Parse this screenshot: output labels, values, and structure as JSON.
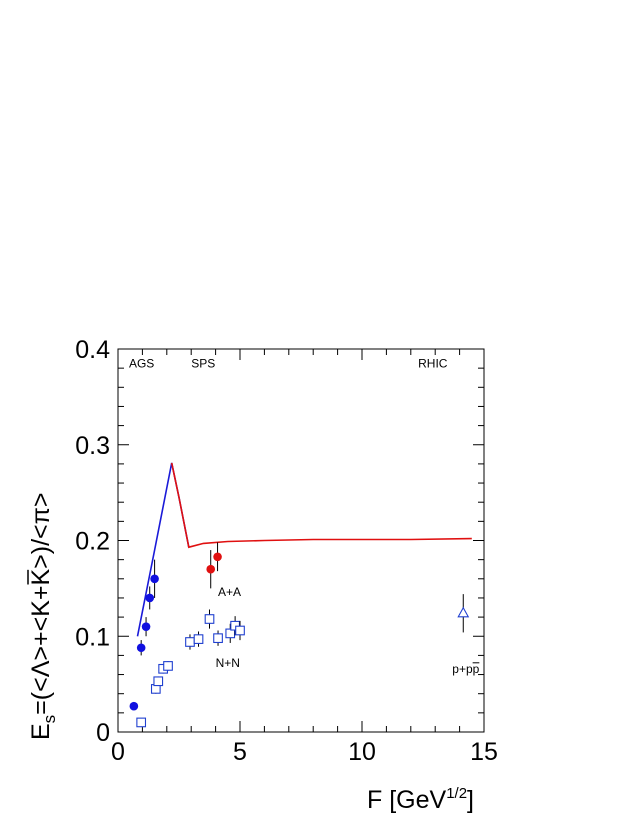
{
  "chart_data": {
    "type": "scatter",
    "xlabel": "F [GeV",
    "xlabel_superscript": "1/2",
    "xlabel_close": "]",
    "ylabel_parts": {
      "E": "E",
      "s": "s",
      "expr": "=(<Λ>+<K+",
      "Kbar": "K",
      "close": ">)/<π>"
    },
    "xlim": [
      0,
      15
    ],
    "ylim": [
      0,
      0.4
    ],
    "xticks": [
      {
        "value": 0,
        "label": "0"
      },
      {
        "value": 5,
        "label": "5"
      },
      {
        "value": 10,
        "label": "10"
      },
      {
        "value": 15,
        "label": "15"
      }
    ],
    "yticks": [
      {
        "value": 0,
        "label": "0"
      },
      {
        "value": 0.1,
        "label": "0.1"
      },
      {
        "value": 0.2,
        "label": "0.2"
      },
      {
        "value": 0.3,
        "label": "0.3"
      },
      {
        "value": 0.4,
        "label": "0.4"
      }
    ],
    "region_labels": [
      {
        "text": "AGS",
        "x": 0.45,
        "y": 0.385
      },
      {
        "text": "SPS",
        "x": 3.0,
        "y": 0.385
      },
      {
        "text": "RHIC",
        "x": 12.3,
        "y": 0.385
      }
    ],
    "annotations": [
      {
        "text": "A+A",
        "x": 4.1,
        "y": 0.146
      },
      {
        "text": "N+N",
        "x": 4.0,
        "y": 0.072
      },
      {
        "text": "p+p",
        "text_bar": "p",
        "x": 13.7,
        "y": 0.066
      }
    ],
    "series": [
      {
        "marker": "filled-circle",
        "color": "#1010e0",
        "points": [
          {
            "x": 0.65,
            "y": 0.027,
            "err": 0
          },
          {
            "x": 0.95,
            "y": 0.088,
            "err": 0.008
          },
          {
            "x": 1.15,
            "y": 0.11,
            "err": 0.01
          },
          {
            "x": 1.3,
            "y": 0.14,
            "err": 0.012
          },
          {
            "x": 1.5,
            "y": 0.16,
            "err": 0.02
          }
        ]
      },
      {
        "marker": "filled-circle",
        "color": "#e01010",
        "points": [
          {
            "x": 3.8,
            "y": 0.17,
            "err": 0.02
          },
          {
            "x": 4.08,
            "y": 0.183,
            "err": 0.015
          }
        ]
      },
      {
        "marker": "open-square",
        "color": "#2040d0",
        "points": [
          {
            "x": 0.95,
            "y": 0.01,
            "err": 0
          },
          {
            "x": 1.55,
            "y": 0.045,
            "err": 0.005
          },
          {
            "x": 1.65,
            "y": 0.053,
            "err": 0.005
          },
          {
            "x": 1.85,
            "y": 0.066,
            "err": 0.005
          },
          {
            "x": 2.05,
            "y": 0.069,
            "err": 0.005
          },
          {
            "x": 2.95,
            "y": 0.094,
            "err": 0.008
          },
          {
            "x": 3.3,
            "y": 0.097,
            "err": 0.008
          },
          {
            "x": 3.75,
            "y": 0.118,
            "err": 0.01
          },
          {
            "x": 4.1,
            "y": 0.098,
            "err": 0.008
          },
          {
            "x": 4.6,
            "y": 0.103,
            "err": 0.01
          },
          {
            "x": 4.8,
            "y": 0.111,
            "err": 0.01
          },
          {
            "x": 5.0,
            "y": 0.106,
            "err": 0.01
          }
        ]
      },
      {
        "marker": "open-triangle",
        "color": "#2040d0",
        "points": [
          {
            "x": 14.15,
            "y": 0.124,
            "err": 0.02
          }
        ]
      }
    ],
    "curves": [
      {
        "color": "#1a1ad8",
        "points": [
          [
            0.8,
            0.1
          ],
          [
            1.5,
            0.19
          ],
          [
            2.2,
            0.281
          ],
          [
            2.5,
            0.245
          ],
          [
            2.9,
            0.193
          ]
        ]
      },
      {
        "color": "#e01010",
        "points": [
          [
            2.2,
            0.281
          ],
          [
            2.5,
            0.245
          ],
          [
            2.9,
            0.193
          ],
          [
            3.5,
            0.197
          ],
          [
            4.5,
            0.199
          ],
          [
            6,
            0.2
          ],
          [
            8,
            0.201
          ],
          [
            10,
            0.201
          ],
          [
            12,
            0.201
          ],
          [
            14.5,
            0.202
          ]
        ]
      }
    ]
  }
}
